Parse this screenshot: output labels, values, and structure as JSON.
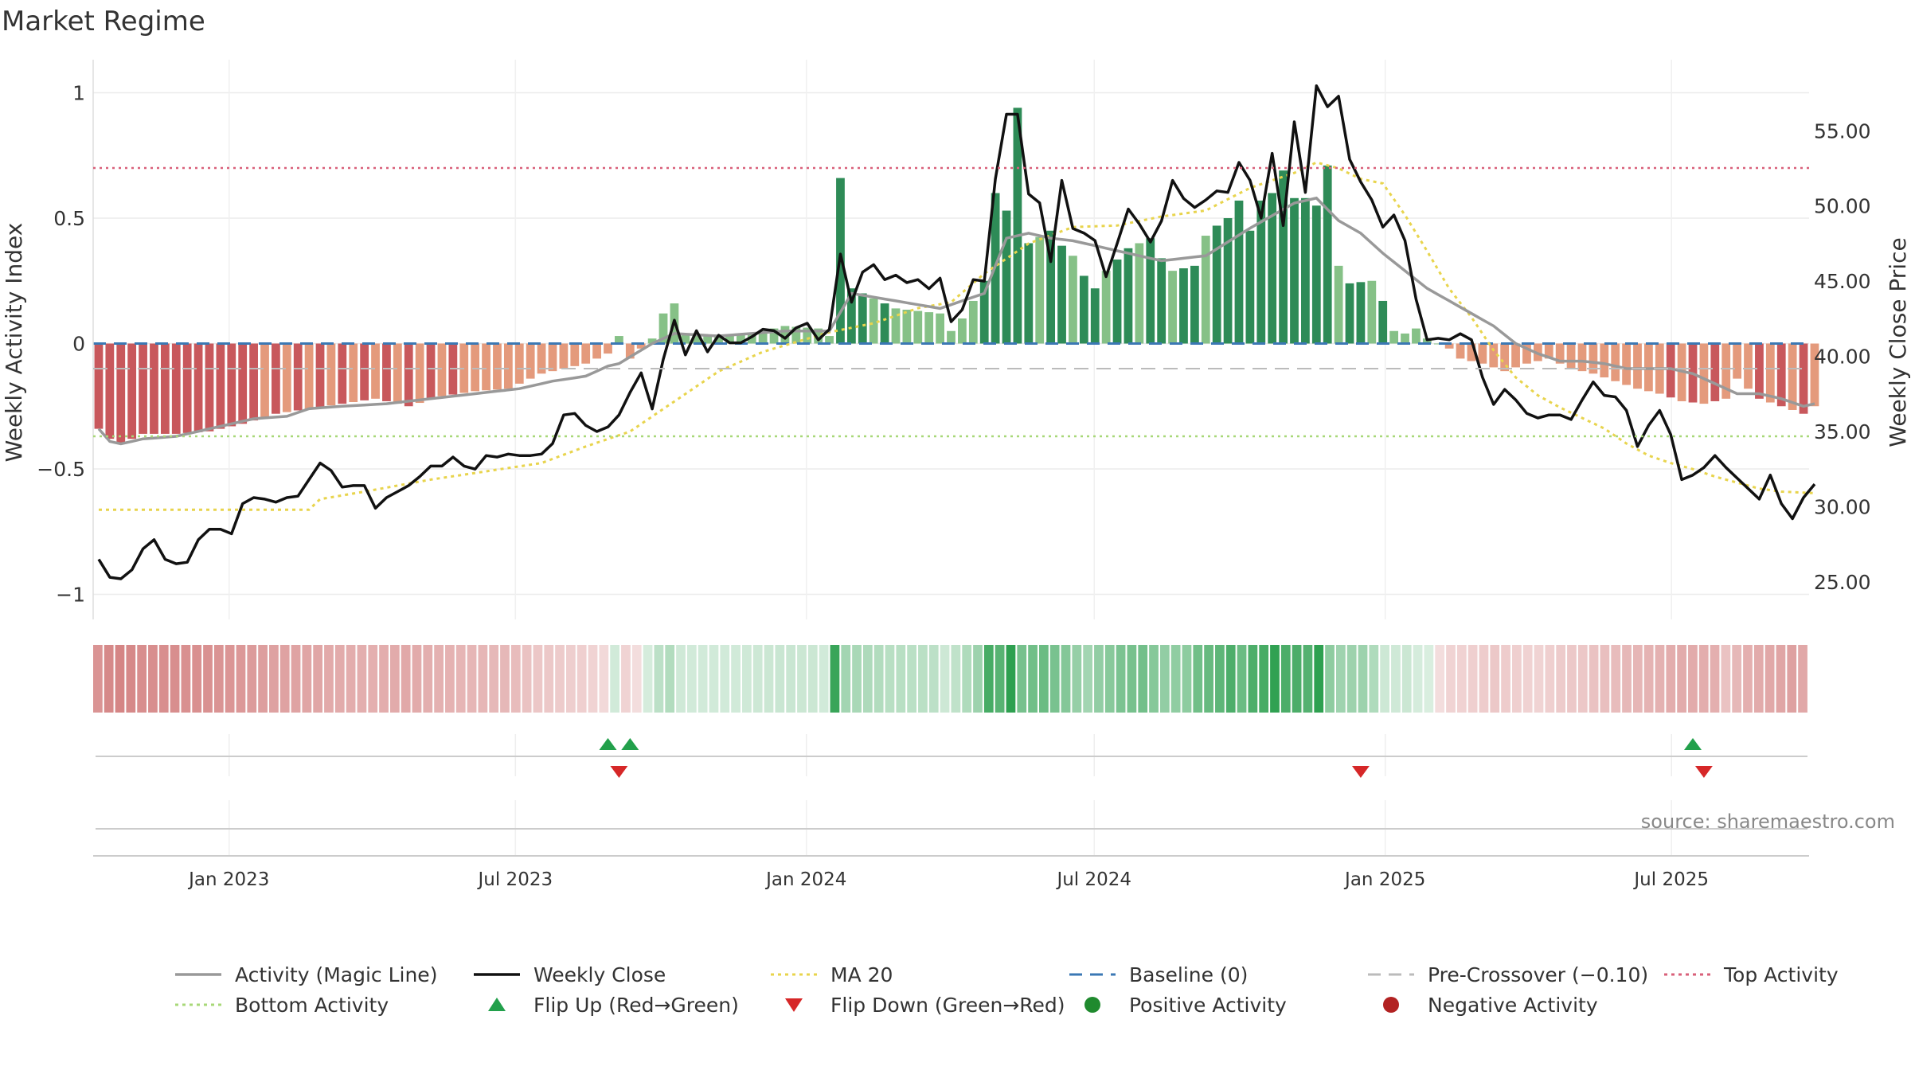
{
  "title": "Market Regime",
  "source_note": "source: sharemaestro.com",
  "colors": {
    "pos_strong": "#2e8b57",
    "pos_light": "#86c187",
    "neg_strong": "#c8585c",
    "neg_light": "#e49a7c",
    "magic_line": "#999999",
    "close_line": "#111111",
    "ma20": "#e8d44d",
    "baseline": "#3b78b4",
    "pre_crossover": "#bbbbbb",
    "top_activity": "#d9607a",
    "bottom_activity": "#a8d878",
    "flip_up": "#22a04b",
    "flip_down": "#d62728",
    "positive_dot": "#1f8a2e",
    "negative_dot": "#b22222"
  },
  "legend": [
    {
      "label": "Activity (Magic Line)",
      "kind": "line-solid",
      "color_key": "magic_line"
    },
    {
      "label": "Weekly Close",
      "kind": "line-solid",
      "color_key": "close_line"
    },
    {
      "label": "MA 20",
      "kind": "line-dot",
      "color_key": "ma20"
    },
    {
      "label": "Baseline (0)",
      "kind": "line-dash",
      "color_key": "baseline"
    },
    {
      "label": "Pre-Crossover (−0.10)",
      "kind": "line-dash",
      "color_key": "pre_crossover"
    },
    {
      "label": "Top Activity",
      "kind": "line-dot",
      "color_key": "top_activity"
    },
    {
      "label": "Bottom Activity",
      "kind": "line-dot",
      "color_key": "bottom_activity"
    },
    {
      "label": "Flip Up (Red→Green)",
      "kind": "tri-up",
      "color_key": "flip_up"
    },
    {
      "label": "Flip Down (Green→Red)",
      "kind": "tri-down",
      "color_key": "flip_down"
    },
    {
      "label": "Positive Activity",
      "kind": "dot",
      "color_key": "positive_dot"
    },
    {
      "label": "Negative Activity",
      "kind": "dot",
      "color_key": "negative_dot"
    }
  ],
  "chart_data": {
    "type": "bar",
    "title": "Market Regime",
    "ylabel": "Weekly Activity Index",
    "y2label": "Weekly Close Price",
    "ylim": [
      -1.1,
      1.1
    ],
    "y2lim": [
      22.5,
      59.2
    ],
    "y_ticks": [
      -1,
      -0.5,
      0,
      0.5,
      1
    ],
    "y_tick_labels": [
      "−1",
      "−0.5",
      "0",
      "0.5",
      "1"
    ],
    "y2_ticks": [
      25,
      30,
      35,
      40,
      45,
      50,
      55
    ],
    "y2_tick_labels": [
      "25.00",
      "30.00",
      "35.00",
      "40.00",
      "45.00",
      "50.00",
      "55.00"
    ],
    "x_range": [
      "2022-10-07",
      "2025-09-26"
    ],
    "x_ticks": [
      "2023-01-01",
      "2023-07-01",
      "2024-01-01",
      "2024-07-01",
      "2025-01-01",
      "2025-07-01"
    ],
    "x_tick_labels": [
      "Jan 2023",
      "Jul 2023",
      "Jan 2024",
      "Jul 2024",
      "Jan 2025",
      "Jul 2025"
    ],
    "reference_lines": {
      "top_activity": 0.7,
      "bottom_activity": -0.37,
      "pre_crossover": -0.1,
      "baseline": 0
    },
    "grid": true,
    "legend_position": "bottom",
    "start_date": "2022-10-07",
    "weeks": 156,
    "activity_anchors": [
      [
        0,
        -0.34
      ],
      [
        1,
        -0.38
      ],
      [
        2,
        -0.4
      ],
      [
        4,
        -0.36
      ],
      [
        7,
        -0.36
      ],
      [
        10,
        -0.35
      ],
      [
        13,
        -0.32
      ],
      [
        16,
        -0.28
      ],
      [
        19,
        -0.26
      ],
      [
        22,
        -0.24
      ],
      [
        25,
        -0.22
      ],
      [
        28,
        -0.25
      ],
      [
        31,
        -0.21
      ],
      [
        34,
        -0.19
      ],
      [
        37,
        -0.18
      ],
      [
        40,
        -0.12
      ],
      [
        44,
        -0.08
      ],
      [
        46,
        -0.04
      ],
      [
        47,
        0.03
      ],
      [
        48,
        -0.06
      ],
      [
        50,
        0.02
      ],
      [
        51,
        0.12
      ],
      [
        52,
        0.16
      ],
      [
        53,
        0.04
      ],
      [
        56,
        0.03
      ],
      [
        59,
        0.04
      ],
      [
        62,
        0.07
      ],
      [
        65,
        0.06
      ],
      [
        66,
        0.03
      ],
      [
        67,
        0.66
      ],
      [
        68,
        0.22
      ],
      [
        70,
        0.18
      ],
      [
        72,
        0.14
      ],
      [
        74,
        0.13
      ],
      [
        76,
        0.12
      ],
      [
        77,
        0.05
      ],
      [
        78,
        0.1
      ],
      [
        79,
        0.17
      ],
      [
        80,
        0.25
      ],
      [
        81,
        0.6
      ],
      [
        82,
        0.53
      ],
      [
        83,
        0.94
      ],
      [
        84,
        0.4
      ],
      [
        86,
        0.45
      ],
      [
        87,
        0.39
      ],
      [
        88,
        0.35
      ],
      [
        89,
        0.27
      ],
      [
        90,
        0.22
      ],
      [
        91,
        0.29
      ],
      [
        93,
        0.38
      ],
      [
        95,
        0.42
      ],
      [
        96,
        0.34
      ],
      [
        97,
        0.29
      ],
      [
        99,
        0.31
      ],
      [
        100,
        0.43
      ],
      [
        101,
        0.47
      ],
      [
        102,
        0.5
      ],
      [
        103,
        0.57
      ],
      [
        104,
        0.45
      ],
      [
        105,
        0.57
      ],
      [
        106,
        0.6
      ],
      [
        107,
        0.69
      ],
      [
        108,
        0.58
      ],
      [
        109,
        0.58
      ],
      [
        110,
        0.55
      ],
      [
        111,
        0.71
      ],
      [
        112,
        0.31
      ],
      [
        113,
        0.24
      ],
      [
        115,
        0.25
      ],
      [
        116,
        0.17
      ],
      [
        117,
        0.05
      ],
      [
        118,
        0.04
      ],
      [
        119,
        0.06
      ],
      [
        120,
        0.02
      ],
      [
        121,
        0.0
      ],
      [
        122,
        -0.02
      ],
      [
        123,
        -0.06
      ],
      [
        125,
        -0.08
      ],
      [
        127,
        -0.11
      ],
      [
        129,
        -0.08
      ],
      [
        131,
        -0.06
      ],
      [
        133,
        -0.1
      ],
      [
        135,
        -0.12
      ],
      [
        137,
        -0.15
      ],
      [
        139,
        -0.18
      ],
      [
        141,
        -0.2
      ],
      [
        143,
        -0.23
      ],
      [
        145,
        -0.24
      ],
      [
        147,
        -0.22
      ],
      [
        148,
        -0.14
      ],
      [
        150,
        -0.22
      ],
      [
        152,
        -0.25
      ],
      [
        154,
        -0.28
      ],
      [
        155,
        -0.25
      ]
    ],
    "close_anchors": [
      [
        0,
        26.5
      ],
      [
        1,
        25.3
      ],
      [
        2,
        25.2
      ],
      [
        3,
        25.8
      ],
      [
        4,
        27.2
      ],
      [
        5,
        27.8
      ],
      [
        6,
        26.5
      ],
      [
        7,
        26.2
      ],
      [
        8,
        26.3
      ],
      [
        9,
        27.8
      ],
      [
        10,
        28.5
      ],
      [
        11,
        28.5
      ],
      [
        12,
        28.2
      ],
      [
        13,
        30.2
      ],
      [
        14,
        30.6
      ],
      [
        15,
        30.5
      ],
      [
        16,
        30.3
      ],
      [
        17,
        30.6
      ],
      [
        18,
        30.7
      ],
      [
        19,
        31.8
      ],
      [
        20,
        32.9
      ],
      [
        21,
        32.4
      ],
      [
        22,
        31.3
      ],
      [
        23,
        31.4
      ],
      [
        24,
        31.4
      ],
      [
        25,
        29.9
      ],
      [
        26,
        30.6
      ],
      [
        27,
        31
      ],
      [
        28,
        31.4
      ],
      [
        29,
        32
      ],
      [
        30,
        32.7
      ],
      [
        31,
        32.7
      ],
      [
        32,
        33.3
      ],
      [
        33,
        32.7
      ],
      [
        34,
        32.5
      ],
      [
        35,
        33.4
      ],
      [
        36,
        33.3
      ],
      [
        37,
        33.5
      ],
      [
        38,
        33.4
      ],
      [
        39,
        33.4
      ],
      [
        40,
        33.5
      ],
      [
        41,
        34.2
      ],
      [
        42,
        36.1
      ],
      [
        43,
        36.2
      ],
      [
        44,
        35.4
      ],
      [
        45,
        35.0
      ],
      [
        46,
        35.3
      ],
      [
        47,
        36.1
      ],
      [
        48,
        37.6
      ],
      [
        49,
        38.9
      ],
      [
        50,
        36.5
      ],
      [
        51,
        39.8
      ],
      [
        52,
        42.4
      ],
      [
        53,
        40.1
      ],
      [
        54,
        41.7
      ],
      [
        55,
        40.3
      ],
      [
        56,
        41.4
      ],
      [
        57,
        40.9
      ],
      [
        58,
        40.9
      ],
      [
        59,
        41.3
      ],
      [
        60,
        41.8
      ],
      [
        61,
        41.7
      ],
      [
        62,
        41.2
      ],
      [
        63,
        41.9
      ],
      [
        64,
        42.2
      ],
      [
        65,
        41.1
      ],
      [
        66,
        41.8
      ],
      [
        67,
        46.8
      ],
      [
        68,
        43.6
      ],
      [
        69,
        45.6
      ],
      [
        70,
        46.1
      ],
      [
        71,
        45.1
      ],
      [
        72,
        45.4
      ],
      [
        73,
        44.9
      ],
      [
        74,
        45.1
      ],
      [
        75,
        44.5
      ],
      [
        76,
        45.2
      ],
      [
        77,
        42.3
      ],
      [
        78,
        43.1
      ],
      [
        79,
        45.1
      ],
      [
        80,
        45.0
      ],
      [
        81,
        51.8
      ],
      [
        82,
        56.1
      ],
      [
        83,
        56.1
      ],
      [
        84,
        50.8
      ],
      [
        85,
        50.2
      ],
      [
        86,
        46.3
      ],
      [
        87,
        51.7
      ],
      [
        88,
        48.5
      ],
      [
        89,
        48.2
      ],
      [
        90,
        47.7
      ],
      [
        91,
        45.3
      ],
      [
        92,
        47.5
      ],
      [
        93,
        49.8
      ],
      [
        94,
        48.8
      ],
      [
        95,
        47.6
      ],
      [
        96,
        49.0
      ],
      [
        97,
        51.7
      ],
      [
        98,
        50.5
      ],
      [
        99,
        49.9
      ],
      [
        100,
        50.4
      ],
      [
        101,
        51.0
      ],
      [
        102,
        50.9
      ],
      [
        103,
        52.9
      ],
      [
        104,
        51.7
      ],
      [
        105,
        49.2
      ],
      [
        106,
        53.5
      ],
      [
        107,
        48.7
      ],
      [
        108,
        55.6
      ],
      [
        109,
        50.9
      ],
      [
        110,
        58.0
      ],
      [
        111,
        56.6
      ],
      [
        112,
        57.3
      ],
      [
        113,
        53.1
      ],
      [
        114,
        51.6
      ],
      [
        115,
        50.4
      ],
      [
        116,
        48.6
      ],
      [
        117,
        49.4
      ],
      [
        118,
        47.7
      ],
      [
        119,
        43.8
      ],
      [
        120,
        41.1
      ],
      [
        121,
        41.2
      ],
      [
        122,
        41.1
      ],
      [
        123,
        41.5
      ],
      [
        124,
        41.1
      ],
      [
        125,
        38.6
      ],
      [
        126,
        36.8
      ],
      [
        127,
        37.8
      ],
      [
        128,
        37.1
      ],
      [
        129,
        36.2
      ],
      [
        130,
        35.9
      ],
      [
        131,
        36.1
      ],
      [
        132,
        36.1
      ],
      [
        133,
        35.8
      ],
      [
        134,
        37.1
      ],
      [
        135,
        38.3
      ],
      [
        136,
        37.4
      ],
      [
        137,
        37.3
      ],
      [
        138,
        36.4
      ],
      [
        139,
        34.0
      ],
      [
        140,
        35.4
      ],
      [
        141,
        36.4
      ],
      [
        142,
        34.8
      ],
      [
        143,
        31.8
      ],
      [
        144,
        32.1
      ],
      [
        145,
        32.6
      ],
      [
        146,
        33.4
      ],
      [
        147,
        32.6
      ],
      [
        148,
        31.9
      ],
      [
        149,
        31.2
      ],
      [
        150,
        30.5
      ],
      [
        151,
        32.1
      ],
      [
        152,
        30.2
      ],
      [
        153,
        29.2
      ],
      [
        154,
        30.6
      ],
      [
        155,
        31.5
      ]
    ],
    "ma20_anchors": [
      [
        0,
        29.8
      ],
      [
        19,
        29.8
      ],
      [
        20,
        30.5
      ],
      [
        24,
        31.0
      ],
      [
        30,
        31.8
      ],
      [
        40,
        32.9
      ],
      [
        44,
        34.0
      ],
      [
        48,
        35.0
      ],
      [
        52,
        37.0
      ],
      [
        56,
        39.0
      ],
      [
        60,
        40.3
      ],
      [
        66,
        41.6
      ],
      [
        70,
        42.2
      ],
      [
        74,
        43.2
      ],
      [
        77,
        43.6
      ],
      [
        80,
        45.5
      ],
      [
        84,
        47.5
      ],
      [
        88,
        48.6
      ],
      [
        92,
        48.7
      ],
      [
        96,
        49.3
      ],
      [
        100,
        49.7
      ],
      [
        104,
        51.2
      ],
      [
        108,
        52.2
      ],
      [
        110,
        52.9
      ],
      [
        112,
        52.5
      ],
      [
        114,
        51.8
      ],
      [
        116,
        51.5
      ],
      [
        118,
        49.4
      ],
      [
        120,
        47.0
      ],
      [
        122,
        44.5
      ],
      [
        124,
        42.6
      ],
      [
        126,
        40.4
      ],
      [
        128,
        38.6
      ],
      [
        130,
        37.4
      ],
      [
        132,
        36.6
      ],
      [
        134,
        35.9
      ],
      [
        136,
        35.2
      ],
      [
        138,
        34.2
      ],
      [
        140,
        33.4
      ],
      [
        142,
        32.9
      ],
      [
        144,
        32.5
      ],
      [
        146,
        32.0
      ],
      [
        148,
        31.6
      ],
      [
        150,
        31.2
      ],
      [
        152,
        31.0
      ],
      [
        155,
        30.9
      ]
    ],
    "magic_anchors": [
      [
        0,
        -0.34
      ],
      [
        1,
        -0.39
      ],
      [
        2,
        -0.4
      ],
      [
        4,
        -0.38
      ],
      [
        7,
        -0.37
      ],
      [
        11,
        -0.33
      ],
      [
        14,
        -0.3
      ],
      [
        17,
        -0.29
      ],
      [
        19,
        -0.26
      ],
      [
        22,
        -0.25
      ],
      [
        26,
        -0.24
      ],
      [
        30,
        -0.22
      ],
      [
        34,
        -0.2
      ],
      [
        38,
        -0.18
      ],
      [
        41,
        -0.15
      ],
      [
        44,
        -0.13
      ],
      [
        46,
        -0.09
      ],
      [
        47,
        -0.08
      ],
      [
        50,
        0.0
      ],
      [
        52,
        0.04
      ],
      [
        56,
        0.03
      ],
      [
        62,
        0.05
      ],
      [
        66,
        0.05
      ],
      [
        68,
        0.2
      ],
      [
        72,
        0.17
      ],
      [
        76,
        0.14
      ],
      [
        80,
        0.2
      ],
      [
        82,
        0.42
      ],
      [
        84,
        0.44
      ],
      [
        86,
        0.42
      ],
      [
        88,
        0.41
      ],
      [
        92,
        0.37
      ],
      [
        96,
        0.33
      ],
      [
        100,
        0.35
      ],
      [
        104,
        0.46
      ],
      [
        108,
        0.56
      ],
      [
        110,
        0.58
      ],
      [
        112,
        0.49
      ],
      [
        114,
        0.44
      ],
      [
        116,
        0.36
      ],
      [
        118,
        0.29
      ],
      [
        120,
        0.22
      ],
      [
        122,
        0.17
      ],
      [
        124,
        0.12
      ],
      [
        126,
        0.07
      ],
      [
        128,
        0.0
      ],
      [
        130,
        -0.04
      ],
      [
        132,
        -0.07
      ],
      [
        134,
        -0.07
      ],
      [
        136,
        -0.08
      ],
      [
        138,
        -0.1
      ],
      [
        140,
        -0.1
      ],
      [
        142,
        -0.1
      ],
      [
        144,
        -0.12
      ],
      [
        146,
        -0.16
      ],
      [
        148,
        -0.2
      ],
      [
        150,
        -0.2
      ],
      [
        152,
        -0.22
      ],
      [
        154,
        -0.25
      ],
      [
        155,
        -0.24
      ]
    ],
    "flip_up_weeks": [
      46,
      48,
      144
    ],
    "flip_down_weeks": [
      47,
      114,
      145
    ]
  }
}
